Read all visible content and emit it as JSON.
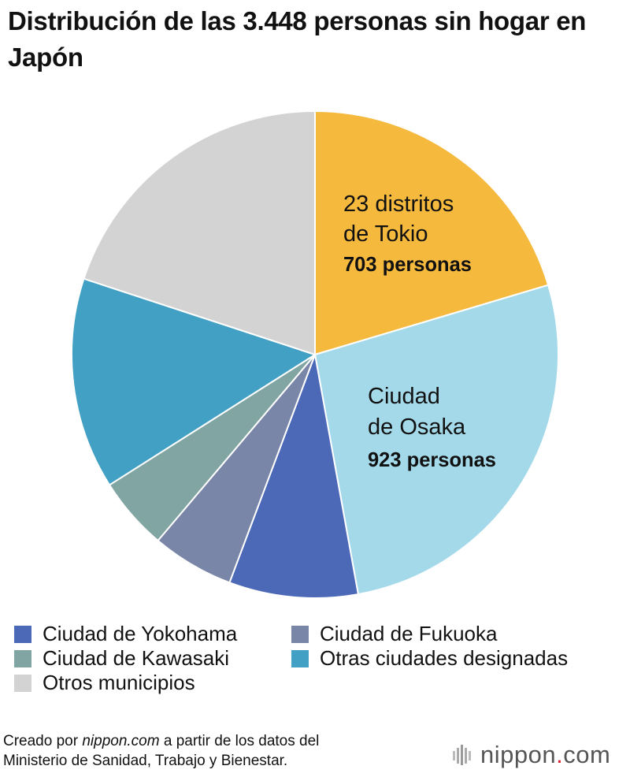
{
  "title": "Distribución de las 3.448 personas sin hogar en Japón",
  "chart_data": {
    "type": "pie",
    "total": 3448,
    "unit": "personas",
    "slices": [
      {
        "name": "23 distritos de Tokio",
        "value": 703,
        "color": "#F5B93E",
        "label_lines": [
          "23 distritos",
          "de Tokio"
        ],
        "value_label": "703 personas"
      },
      {
        "name": "Ciudad de Osaka",
        "value": 923,
        "color": "#A4D9EA",
        "label_lines": [
          "Ciudad",
          "de Osaka"
        ],
        "value_label": "923 personas"
      },
      {
        "name": "Ciudad de Yokohama",
        "value": 295,
        "color": "#4C69B8"
      },
      {
        "name": "Ciudad de Fukuoka",
        "value": 188,
        "color": "#7A86A8"
      },
      {
        "name": "Ciudad de Kawasaki",
        "value": 167,
        "color": "#80A5A2"
      },
      {
        "name": "Otras ciudades designadas",
        "value": 484,
        "color": "#41A0C3"
      },
      {
        "name": "Otros municipios",
        "value": 688,
        "color": "#D3D3D3"
      }
    ],
    "start_angle_deg": 0,
    "direction": "clockwise",
    "legend_position": "bottom"
  },
  "legend": [
    {
      "label": "Ciudad de Yokohama",
      "color": "#4C69B8"
    },
    {
      "label": "Ciudad de Fukuoka",
      "color": "#7A86A8"
    },
    {
      "label": "Ciudad de Kawasaki",
      "color": "#80A5A2"
    },
    {
      "label": "Otras ciudades designadas",
      "color": "#41A0C3"
    },
    {
      "label": "Otros municipios",
      "color": "#D3D3D3"
    }
  ],
  "footer": {
    "prefix": "Creado por ",
    "source": "nippon.com",
    "suffix_line1": " a partir de los datos del",
    "line2": "Ministerio de Sanidad, Trabajo y Bienestar."
  },
  "brand": {
    "name_part1": "nippon",
    "dot": ".",
    "name_part2": "com",
    "accent_color": "#D9232D"
  }
}
